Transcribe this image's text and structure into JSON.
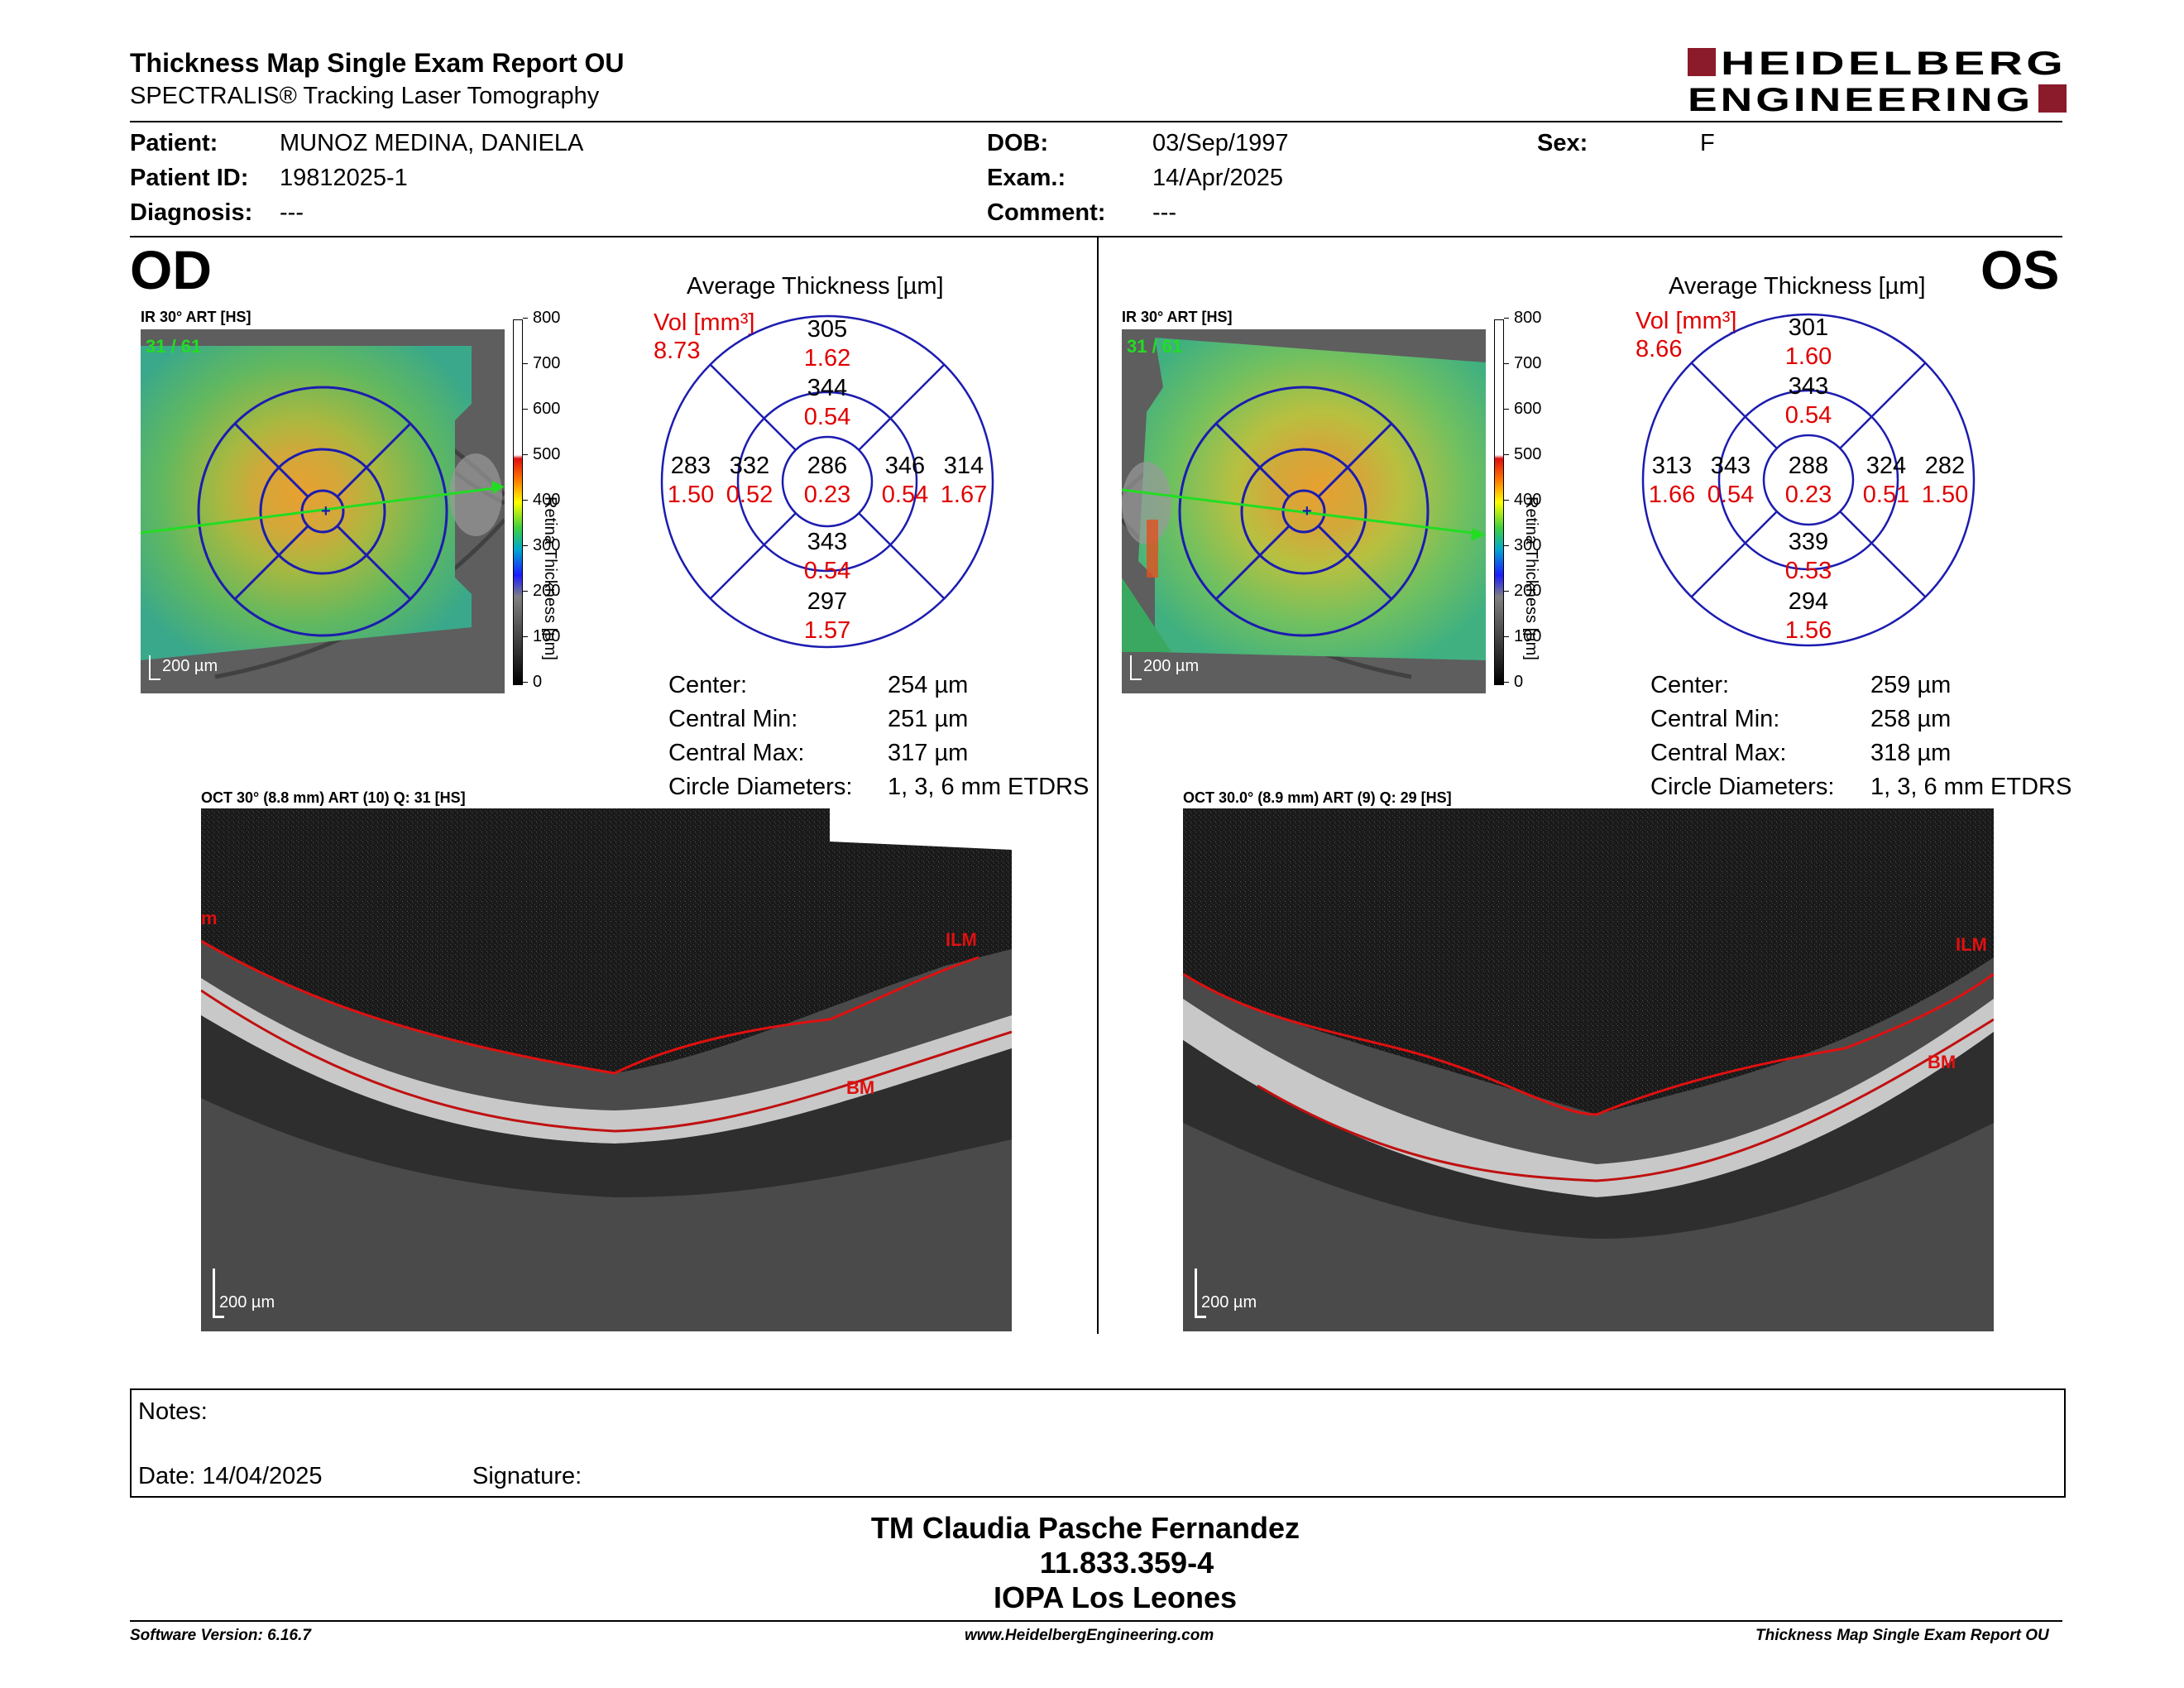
{
  "header": {
    "title": "Thickness Map Single Exam Report OU",
    "subtitle": "SPECTRALIS® Tracking Laser Tomography",
    "logo_line1": "HEIDELBERG",
    "logo_line2": "ENGINEERING"
  },
  "patient": {
    "patient_label": "Patient:",
    "patient_value": "MUNOZ MEDINA, DANIELA",
    "id_label": "Patient ID:",
    "id_value": "19812025-1",
    "diagnosis_label": "Diagnosis:",
    "diagnosis_value": "---",
    "dob_label": "DOB:",
    "dob_value": "03/Sep/1997",
    "exam_label": "Exam.:",
    "exam_value": "14/Apr/2025",
    "comment_label": "Comment:",
    "comment_value": "---",
    "sex_label": "Sex:",
    "sex_value": "F"
  },
  "colorbar_ticks": [
    "800",
    "700",
    "600",
    "500",
    "400",
    "300",
    "200",
    "100",
    "0"
  ],
  "colorbar_label": "Retina  Thickness [µm]",
  "od": {
    "eye_label": "OD",
    "ir_label": "IR 30° ART [HS]",
    "frames": "31 / 61",
    "scale": "200 µm",
    "avg_title": "Average Thickness [µm]",
    "vol_label": "Vol [mm³]",
    "vol_value": "8.73",
    "sectors": {
      "outer_sup": {
        "t": "305",
        "v": "1.62"
      },
      "inner_sup": {
        "t": "344",
        "v": "0.54"
      },
      "outer_left": {
        "t": "283",
        "v": "1.50"
      },
      "inner_left": {
        "t": "332",
        "v": "0.52"
      },
      "center": {
        "t": "286",
        "v": "0.23"
      },
      "inner_right": {
        "t": "346",
        "v": "0.54"
      },
      "outer_right": {
        "t": "314",
        "v": "1.67"
      },
      "inner_inf": {
        "t": "343",
        "v": "0.54"
      },
      "outer_inf": {
        "t": "297",
        "v": "1.57"
      }
    },
    "summary": [
      {
        "label": "Center:",
        "value": "254 µm"
      },
      {
        "label": "Central Min:",
        "value": "251 µm"
      },
      {
        "label": "Central Max:",
        "value": "317 µm"
      },
      {
        "label": "Circle Diameters:",
        "value": "1, 3, 6 mm ETDRS"
      }
    ],
    "oct_label": "OCT 30° (8.8 mm) ART (10) Q: 31 [HS]",
    "oct_ilm": "ILM",
    "oct_bm": "BM",
    "oct_left_mark": "m",
    "oct_scale": "200 µm"
  },
  "os": {
    "eye_label": "OS",
    "ir_label": "IR 30° ART [HS]",
    "frames": "31 / 61",
    "scale": "200 µm",
    "avg_title": "Average Thickness [µm]",
    "vol_label": "Vol [mm³]",
    "vol_value": "8.66",
    "sectors": {
      "outer_sup": {
        "t": "301",
        "v": "1.60"
      },
      "inner_sup": {
        "t": "343",
        "v": "0.54"
      },
      "outer_left": {
        "t": "313",
        "v": "1.66"
      },
      "inner_left": {
        "t": "343",
        "v": "0.54"
      },
      "center": {
        "t": "288",
        "v": "0.23"
      },
      "inner_right": {
        "t": "324",
        "v": "0.51"
      },
      "outer_right": {
        "t": "282",
        "v": "1.50"
      },
      "inner_inf": {
        "t": "339",
        "v": "0.53"
      },
      "outer_inf": {
        "t": "294",
        "v": "1.56"
      }
    },
    "summary": [
      {
        "label": "Center:",
        "value": "259 µm"
      },
      {
        "label": "Central Min:",
        "value": "258 µm"
      },
      {
        "label": "Central Max:",
        "value": "318 µm"
      },
      {
        "label": "Circle Diameters:",
        "value": "1, 3, 6 mm ETDRS"
      }
    ],
    "oct_label": "OCT 30.0° (8.9 mm) ART (9) Q: 29 [HS]",
    "oct_ilm": "ILM",
    "oct_bm": "BM",
    "oct_scale": "200 µm"
  },
  "notes": {
    "notes_label": "Notes:",
    "date_label": "Date: 14/04/2025",
    "signature_label": "Signature:"
  },
  "signature_block": {
    "name": "TM Claudia Pasche Fernandez",
    "id": "11.833.359-4",
    "org": "IOPA Los Leones"
  },
  "footer": {
    "software": "Software Version: 6.16.7",
    "website": "www.HeidelbergEngineering.com",
    "report": "Thickness Map Single Exam Report OU"
  },
  "colors": {
    "logo_red": "#8b1a2b",
    "grid_blue": "#1c1cb0",
    "vol_red": "#e00000",
    "frame_green": "#22dd22",
    "seg_red": "#e01010"
  }
}
